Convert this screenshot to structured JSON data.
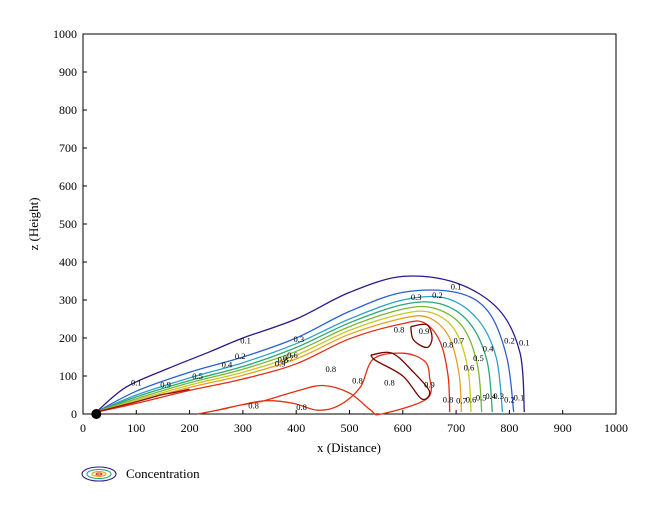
{
  "chart_data": {
    "type": "contour",
    "xlabel": "x (Distance)",
    "ylabel": "z (Height)",
    "xlim": [
      0,
      1000
    ],
    "ylim": [
      0,
      1000
    ],
    "x_ticks": [
      0,
      100,
      200,
      300,
      400,
      500,
      600,
      700,
      800,
      900,
      1000
    ],
    "y_ticks": [
      0,
      100,
      200,
      300,
      400,
      500,
      600,
      700,
      800,
      900,
      1000
    ],
    "grid": false,
    "source": {
      "x": 25,
      "z": 0,
      "marker": "filled-circle"
    },
    "levels": [
      {
        "level": 0.1,
        "label": "0.1",
        "color": "#2a1a8c",
        "x": [
          25,
          80,
          160,
          240,
          300,
          400,
          500,
          600,
          700,
          780,
          820,
          828
        ],
        "z": [
          5,
          70,
          120,
          165,
          200,
          250,
          320,
          362,
          345,
          275,
          160,
          5
        ],
        "labels": [
          {
            "x": 100,
            "z": 75
          },
          {
            "x": 305,
            "z": 185
          },
          {
            "x": 700,
            "z": 328
          },
          {
            "x": 828,
            "z": 180
          },
          {
            "x": 818,
            "z": 35
          }
        ]
      },
      {
        "level": 0.2,
        "label": "0.2",
        "color": "#2d5fd0",
        "x": [
          25,
          100,
          200,
          300,
          400,
          500,
          600,
          700,
          760,
          795,
          808
        ],
        "z": [
          5,
          60,
          110,
          150,
          200,
          270,
          320,
          320,
          270,
          150,
          5
        ],
        "labels": [
          {
            "x": 295,
            "z": 145
          },
          {
            "x": 665,
            "z": 305
          },
          {
            "x": 800,
            "z": 185
          },
          {
            "x": 800,
            "z": 30
          }
        ]
      },
      {
        "level": 0.3,
        "label": "0.3",
        "color": "#2ea0c8",
        "x": [
          25,
          100,
          200,
          300,
          400,
          500,
          600,
          680,
          740,
          775,
          787
        ],
        "z": [
          5,
          50,
          95,
          135,
          185,
          250,
          300,
          305,
          250,
          150,
          5
        ],
        "labels": [
          {
            "x": 405,
            "z": 190
          },
          {
            "x": 625,
            "z": 300
          },
          {
            "x": 780,
            "z": 40
          }
        ]
      },
      {
        "level": 0.4,
        "label": "0.4",
        "color": "#2aa878",
        "x": [
          25,
          100,
          200,
          300,
          400,
          500,
          600,
          670,
          725,
          758,
          768
        ],
        "z": [
          5,
          45,
          88,
          125,
          175,
          240,
          288,
          290,
          240,
          140,
          5
        ],
        "labels": [
          {
            "x": 270,
            "z": 122
          },
          {
            "x": 760,
            "z": 165
          },
          {
            "x": 765,
            "z": 40
          }
        ]
      },
      {
        "level": 0.5,
        "label": "0.5",
        "color": "#78b832",
        "x": [
          25,
          100,
          200,
          300,
          400,
          500,
          600,
          660,
          712,
          740,
          748
        ],
        "z": [
          5,
          40,
          82,
          118,
          165,
          230,
          276,
          278,
          230,
          130,
          5
        ],
        "labels": [
          {
            "x": 215,
            "z": 92
          },
          {
            "x": 742,
            "z": 140
          },
          {
            "x": 747,
            "z": 35
          }
        ]
      },
      {
        "level": 0.6,
        "label": "0.6",
        "color": "#c8c828",
        "x": [
          25,
          100,
          200,
          300,
          400,
          500,
          600,
          655,
          698,
          722,
          728
        ],
        "z": [
          5,
          36,
          76,
          110,
          155,
          220,
          264,
          266,
          220,
          120,
          5
        ],
        "labels": [
          {
            "x": 393,
            "z": 148
          },
          {
            "x": 724,
            "z": 115
          },
          {
            "x": 728,
            "z": 30
          }
        ]
      },
      {
        "level": 0.7,
        "label": "0.7",
        "color": "#e8a020",
        "x": [
          25,
          100,
          200,
          300,
          400,
          500,
          600,
          648,
          686,
          705,
          710
        ],
        "z": [
          5,
          32,
          70,
          102,
          145,
          210,
          252,
          254,
          205,
          110,
          5
        ],
        "labels": [
          {
            "x": 385,
            "z": 140
          },
          {
            "x": 705,
            "z": 185
          },
          {
            "x": 710,
            "z": 28
          }
        ]
      },
      {
        "level": 0.8,
        "label": "0.8",
        "color": "#e03010",
        "x": [
          25,
          100,
          200,
          300,
          400,
          500,
          600,
          640,
          670,
          685,
          688
        ],
        "z": [
          5,
          28,
          62,
          92,
          132,
          198,
          238,
          240,
          190,
          100,
          5
        ],
        "labels": [
          {
            "x": 375,
            "z": 135
          },
          {
            "x": 593,
            "z": 215
          },
          {
            "x": 685,
            "z": 175
          },
          {
            "x": 685,
            "z": 30
          }
        ]
      },
      {
        "level": 0.8,
        "label": "0.8",
        "color": "#e03010",
        "x": [
          215,
          260,
          300,
          345,
          395,
          440,
          480,
          520,
          545,
          600,
          640,
          650,
          645,
          560,
          540,
          500,
          450,
          400,
          340,
          290,
          245,
          215
        ],
        "z": [
          0,
          12,
          25,
          35,
          28,
          10,
          22,
          70,
          145,
          160,
          140,
          100,
          40,
          0,
          10,
          55,
          75,
          60,
          35,
          22,
          8,
          0
        ],
        "labels": [
          {
            "x": 320,
            "z": 15
          },
          {
            "x": 465,
            "z": 110
          },
          {
            "x": 410,
            "z": 10
          },
          {
            "x": 515,
            "z": 80
          },
          {
            "x": 575,
            "z": 75
          }
        ]
      },
      {
        "level": 0.9,
        "label": "0.9",
        "color": "#a00808",
        "x": [
          25,
          80,
          100,
          145,
          165,
          200
        ],
        "z": [
          5,
          25,
          32,
          50,
          55,
          65
        ],
        "labels": [
          {
            "x": 155,
            "z": 70
          },
          {
            "x": 370,
            "z": 125
          },
          {
            "x": 640,
            "z": 210
          },
          {
            "x": 650,
            "z": 70
          }
        ]
      },
      {
        "level": 0.9,
        "label": "0.9",
        "color": "#7a0000",
        "x": [
          615,
          645,
          655,
          645,
          620,
          615
        ],
        "z": [
          230,
          235,
          200,
          175,
          195,
          230
        ],
        "labels": []
      },
      {
        "level": 0.9,
        "label": "0.9",
        "color": "#7a0000",
        "x": [
          540,
          580,
          620,
          650,
          635,
          600,
          550,
          540
        ],
        "z": [
          155,
          160,
          110,
          60,
          40,
          100,
          140,
          155
        ],
        "labels": []
      }
    ],
    "legend": {
      "label": "Concentration",
      "placement": "bottom-left"
    }
  }
}
